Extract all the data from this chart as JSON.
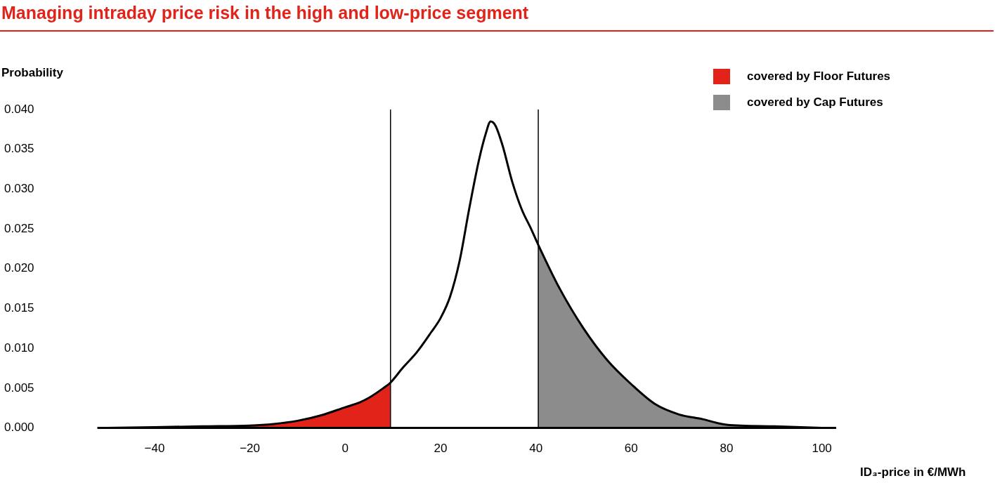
{
  "chart_data": {
    "type": "line",
    "title": "Managing intraday price risk in the high and low-price segment",
    "xlabel": "ID₃-price in €/MWh",
    "ylabel": "Probability",
    "xlim": [
      -52,
      103
    ],
    "ylim": [
      0,
      0.04
    ],
    "xticks": [
      {
        "value": -40,
        "label": "−40"
      },
      {
        "value": -20,
        "label": "−20"
      },
      0,
      20,
      40,
      60,
      80,
      100
    ],
    "yticks": [
      {
        "value": 0,
        "label": "0.000"
      },
      {
        "value": 0.005,
        "label": "0.005"
      },
      {
        "value": 0.01,
        "label": "0.010"
      },
      {
        "value": 0.015,
        "label": "0.015"
      },
      {
        "value": 0.02,
        "label": "0.020"
      },
      {
        "value": 0.025,
        "label": "0.025"
      },
      {
        "value": 0.03,
        "label": "0.030"
      },
      {
        "value": 0.035,
        "label": "0.035"
      },
      {
        "value": 0.04,
        "label": "0.040"
      }
    ],
    "grid": false,
    "legend": "top right",
    "marker": "none",
    "line_style": "solid",
    "series": [
      {
        "type": "area",
        "name": "covered by Floor Futures",
        "color": "#e2231a",
        "x": [
          -50,
          -40,
          -30,
          -20,
          -15,
          -10,
          -5,
          0,
          3,
          5,
          8,
          9.5
        ],
        "values": [
          0,
          0.0001,
          0.0002,
          0.0003,
          0.0005,
          0.0009,
          0.0016,
          0.0026,
          0.0032,
          0.0038,
          0.005,
          0.0057
        ]
      },
      {
        "type": "area",
        "name": "covered by Cap Futures",
        "color": "#8c8c8c",
        "x": [
          40.5,
          45,
          50,
          55,
          60,
          65,
          70,
          75,
          80,
          90,
          100
        ],
        "values": [
          0.023,
          0.0175,
          0.0125,
          0.0085,
          0.0055,
          0.003,
          0.0017,
          0.0011,
          0.0004,
          0.0002,
          0
        ]
      },
      {
        "type": "line",
        "color": "#000000",
        "x": [
          -50,
          -40,
          -30,
          -20,
          -15,
          -10,
          -5,
          0,
          3,
          5,
          8,
          9.5,
          12,
          15,
          18,
          20,
          22,
          24,
          26,
          28,
          29.5,
          30.5,
          31.5,
          33,
          35,
          37,
          39,
          40.5,
          45,
          50,
          55,
          60,
          65,
          70,
          75,
          80,
          90,
          100
        ],
        "values": [
          0,
          0.0001,
          0.0002,
          0.0003,
          0.0005,
          0.0009,
          0.0016,
          0.0026,
          0.0032,
          0.0038,
          0.005,
          0.0057,
          0.0075,
          0.0095,
          0.012,
          0.0138,
          0.0165,
          0.021,
          0.0275,
          0.0335,
          0.037,
          0.0385,
          0.038,
          0.0355,
          0.031,
          0.0275,
          0.025,
          0.023,
          0.0175,
          0.0125,
          0.0085,
          0.0055,
          0.003,
          0.0017,
          0.0011,
          0.0004,
          0.0002,
          0
        ]
      }
    ],
    "ref_lines": [
      {
        "axis": "x",
        "value": 9.5,
        "color": "#000000"
      },
      {
        "axis": "x",
        "value": 40.5,
        "color": "#000000"
      }
    ]
  }
}
